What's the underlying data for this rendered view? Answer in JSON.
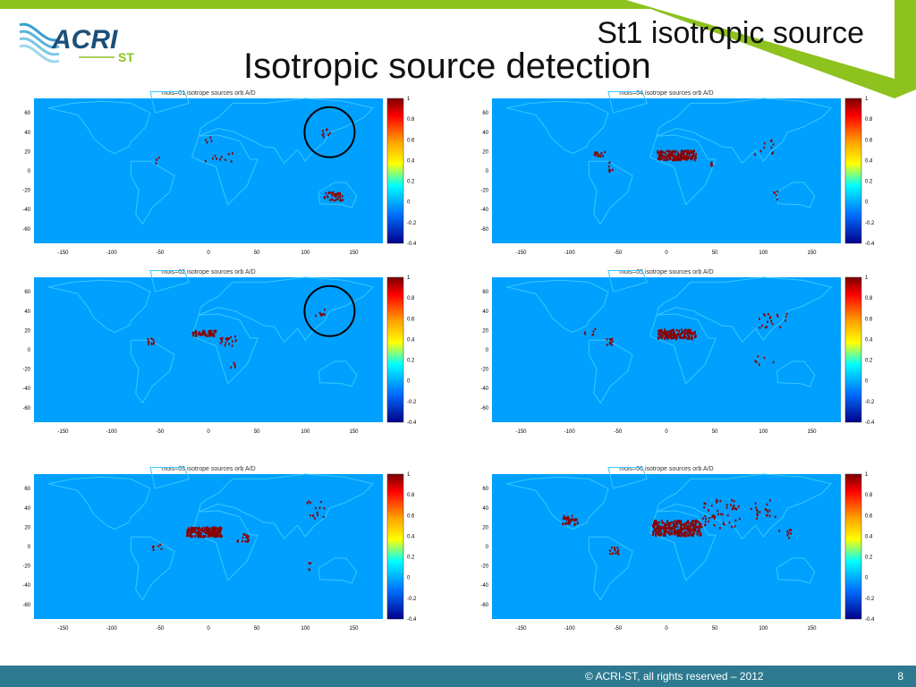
{
  "slide": {
    "subtitle": "St1 isotropic source",
    "title": "Isotropic source detection",
    "page_number": "8",
    "copyright": "© ACRI-ST, all rights reserved – 2012"
  },
  "logo": {
    "main_text": "ACRI",
    "sub_text": "ST"
  },
  "colors": {
    "map_bg": "#00a0ff",
    "coast": "#38c8ff",
    "source": "#8b0000",
    "accent": "#8dc21f",
    "footer": "#2d7a90"
  },
  "panels": [
    {
      "id": "mois01",
      "title": "mois=01 isotrope sources orb A/D",
      "cbar_labels": [
        "1",
        "0.8",
        "0.6",
        "0.4",
        "0.2",
        "0",
        "-0.2",
        "-0.4"
      ],
      "circle": true
    },
    {
      "id": "mois04",
      "title": "mois=04 isotrope sources orb A/D",
      "cbar_labels": [
        "1",
        "0.8",
        "0.6",
        "0.4",
        "0.2",
        "0",
        "-0.2",
        "-0.4"
      ],
      "circle": false
    },
    {
      "id": "mois02",
      "title": "mois=02 isotrope sources orb A/D",
      "cbar_labels": [
        "1",
        "0.8",
        "0.6",
        "0.4",
        "0.2",
        "0",
        "-0.2",
        "-0.4"
      ],
      "circle": true
    },
    {
      "id": "mois05",
      "title": "mois=05 isotrope sources orb A/D",
      "cbar_labels": [
        "1",
        "0.8",
        "0.6",
        "0.4",
        "0.2",
        "0",
        "-0.2",
        "-0.4"
      ],
      "circle": false
    },
    {
      "id": "mois03",
      "title": "mois=03 isotrope sources orb A/D",
      "cbar_labels": [
        "1",
        "0.8",
        "0.6",
        "0.4",
        "0.2",
        "0",
        "-0.2",
        "-0.4"
      ],
      "circle": false
    },
    {
      "id": "mois06",
      "title": "mois=06 isotrope sources orb A/D",
      "cbar_labels": [
        "1",
        "0.8",
        "0.6",
        "0.4",
        "0.2",
        "0",
        "-0.2",
        "-0.4"
      ],
      "circle": false
    }
  ],
  "x_ticks": [
    "-150",
    "-100",
    "-50",
    "0",
    "50",
    "100",
    "150"
  ],
  "y_ticks": [
    "60",
    "40",
    "20",
    "0",
    "-20",
    "-40",
    "-60"
  ]
}
